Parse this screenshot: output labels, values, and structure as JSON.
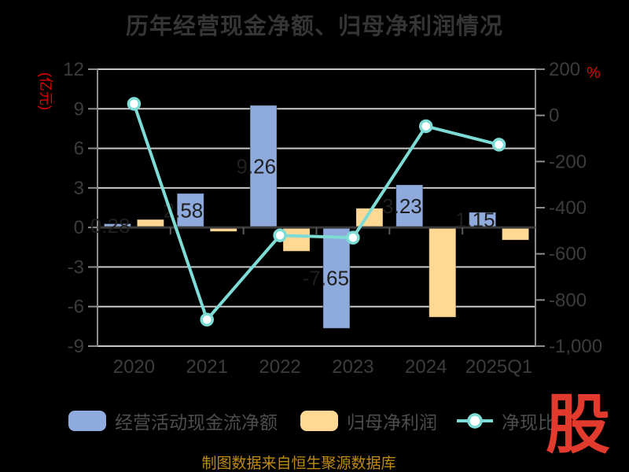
{
  "title": "历年经营现金净额、归母净利润情况",
  "footer": {
    "text": "制图数据来自恒生聚源数据库"
  },
  "logo": {
    "text": "股"
  },
  "colors": {
    "bar_blue": "#8faadc",
    "bar_orange": "#ffd894",
    "line_teal": "#7edcd6",
    "axis_unit_red": "#dd0000",
    "footer_gold": "#bf8a10",
    "logo_red": "#e23a2c",
    "grid_gray": "#c9c9c9",
    "axis_gray": "#8c8c8c",
    "zero_line_gray": "#3a3a3a",
    "tick_text_gray": "#3c3c3c",
    "bar_label_dark": "#1f1f1f"
  },
  "chart_data": {
    "type": "bar",
    "title": "历年经营现金净额、归母净利润情况",
    "categories": [
      "2020",
      "2021",
      "2022",
      "2023",
      "2024",
      "2025Q1"
    ],
    "series": [
      {
        "name": "经营活动现金流净额",
        "type": "bar",
        "axis": "left",
        "color": "#8faadc",
        "values": [
          0.28,
          2.58,
          9.26,
          -7.65,
          3.23,
          1.15
        ],
        "labels": [
          "0.28",
          "2.58",
          "9.26",
          "-7.65",
          "3.23",
          "1.15"
        ]
      },
      {
        "name": "归母净利润",
        "type": "bar",
        "axis": "left",
        "color": "#ffd894",
        "values": [
          0.6,
          -0.3,
          -1.8,
          1.45,
          -6.8,
          -0.95
        ]
      },
      {
        "name": "净现比",
        "type": "line",
        "axis": "right",
        "color": "#7edcd6",
        "values": [
          50,
          -885,
          -520,
          -530,
          -47,
          -127
        ]
      }
    ],
    "left_axis": {
      "label": "(亿元)",
      "range": [
        -9,
        12
      ],
      "ticks": [
        12,
        9,
        6,
        3,
        0,
        -3,
        -6,
        -9
      ],
      "tick_labels": [
        "12",
        "9",
        "6",
        "3",
        "0",
        "-3",
        "-6",
        "-9"
      ]
    },
    "right_axis": {
      "label": "%",
      "range": [
        -1000,
        200
      ],
      "ticks": [
        200,
        0,
        -200,
        -400,
        -600,
        -800,
        -1000
      ],
      "tick_labels": [
        "200",
        "0",
        "-200",
        "-400",
        "-600",
        "-800",
        "-1,000"
      ]
    },
    "grid": true,
    "legend_position": "bottom"
  }
}
